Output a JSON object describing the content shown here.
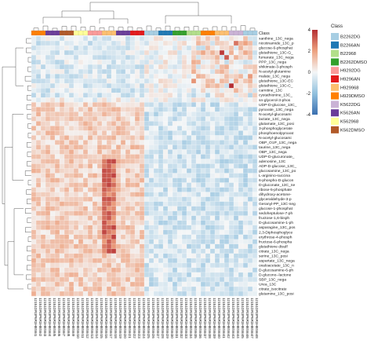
{
  "chart_data": {
    "type": "heatmap",
    "class_row_label": "Class",
    "rows": [
      "xanthine_13C_nega",
      "nicotinamide_13C_p",
      "glucose-6-phosphat",
      "glutathione_13C-G_",
      "fumarate_13C_nega",
      "PPP_13C_nega",
      "shikimate-3-phosph",
      "N-acetyl-glutamine",
      "malate_13C_nega",
      "glutathione_13C-EC",
      "glutathione_13C-C_",
      "carnitine_13C",
      "cystathionine_13C_",
      "sn-glycerol-3-phos",
      "UDP-D-glucose_13C_",
      "pyruvate_13C_nega",
      "N-acetyl-glucosami",
      "lactate_13C_nega",
      "glutamate_13C_posi",
      "3-phosphoglycerate",
      "phosphoenolpyruvat",
      "N-acetyl-glucosami",
      "OBP_O1P_13C_nega",
      "taurine_13C_nega",
      "OBP_13C_nega",
      "UDP-D-glucuronate_",
      "adenosine_13C",
      "ADP-D-glucose_13C_",
      "glucosamine_13C_po",
      "L-arginino-succina",
      "6-phospho-D-glucon",
      "D-gluconate_13C_ne",
      "ribose-5-phosphate",
      "dihydroxy-acetone-",
      "glyceraldehyde-3-p",
      "Geranyl-PP_13C-neg",
      "glucose-1-phosphat",
      "sedoheptulose-7-ph",
      "fructose-1,6-bisph",
      "D-glucosamine-1-ph",
      "asparagine_13C_pos",
      "2,3-Diphosphoglyce",
      "erythrose-4-phosph",
      "fructose-6-phospha",
      "glutathione disulf",
      "citrate_13C_nega",
      "serine_13C_posi",
      "aspartate_13C_nega",
      "oxaloacetate_13C_n",
      "D-glucosamine-6-ph",
      "D-glucono--lactone",
      "SBP_13C_nega",
      "Urea_13C",
      "citrate_isocitrate",
      "glutamine_13C_posi"
    ],
    "columns": [
      "12151DR3P6R3HBS6I1",
      "12151DR3P6R3HBS6I2",
      "12151DR3P6R3HBS6I3",
      "12151DR3P6R3HBS6I4",
      "12151DR3P6R3HBS6I5",
      "12151DR3P6R3HBS6I6",
      "12151DR3P6R3HBS6I7",
      "12151DR3P6R3HBS6I8",
      "12151DR3P6R3HBS6I9",
      "12151DR3P6R3HBS6I10",
      "12151DR3P6R3HBS6I11",
      "12151DR3P6R3HBS6I12",
      "12151DR3P6R3HBS6I13",
      "12151DR3P6R3HBS6I14",
      "12151DR3P6R3HBS6I15",
      "12151DR3P6R3HBS6I16",
      "12151DR3P6R3HBS6I17",
      "12151DR3P6R3HBS6I18",
      "12151DR3P6R3HBS6I19",
      "12151DR3P6R3HBS6I20",
      "12151DR3P6R3HBS6I21",
      "12151DR3P6R3HBS6I22",
      "12151DR3P6R3HBS6I23",
      "12151DR3P6R3HBS6I24",
      "12151DR3P6R3HBS6I25",
      "12151DR3P6R3HBS6I26",
      "12151DR3P6R3HBS6I27",
      "12151DR3P6R3HBS6I28",
      "12151DR3P6R3HBS6I29",
      "12151DR3P6R3HBS6I30",
      "12151DR3P6R3HBS6I31",
      "12151DR3P6R3HBS6I32",
      "12151DR3P6R3HBS6I33",
      "12151DR3P6R3HBS6I34",
      "12151DR3P6R3HBS6I35",
      "12151DR3P6R3HBS6I36",
      "12151DR3P6R3HBS6I37",
      "12151DR3P6R3HBS6I38",
      "12151DR3P6R3HBS6I39",
      "12151DR3P6R3HBS6I40",
      "12151DR3P6R3HBS6I41",
      "12151DR3P6R3HBS6I42",
      "12151DR3P6R3HBS6I43",
      "12151DR3P6R3HBS6I44",
      "12151DR3P6R3HBS6I45",
      "12151DR3P6R3HBS6I46",
      "12151DR3P6R3HBS6I47",
      "12151DR3P6R3HBS6I48"
    ],
    "column_classes": [
      7,
      7,
      7,
      9,
      9,
      9,
      11,
      11,
      11,
      10,
      10,
      10,
      4,
      4,
      4,
      6,
      6,
      6,
      9,
      9,
      9,
      5,
      5,
      5,
      0,
      0,
      0,
      1,
      1,
      1,
      3,
      3,
      3,
      2,
      2,
      2,
      7,
      7,
      7,
      6,
      6,
      6,
      8,
      8,
      8,
      0,
      0,
      0
    ],
    "color_scale": {
      "min": -4,
      "max": 4,
      "ticks": [
        4,
        2,
        0,
        -2,
        -4
      ],
      "colors": [
        "#3a6fb0",
        "#92c1de",
        "#f4f6f7",
        "#eda280",
        "#b52e32"
      ]
    },
    "legend": {
      "title": "Class",
      "position": "right",
      "entries": [
        {
          "label": "B2262DG",
          "color": "#a7cee3"
        },
        {
          "label": "B2266AN",
          "color": "#1f78b4"
        },
        {
          "label": "B22968",
          "color": "#b2df8a"
        },
        {
          "label": "B2262DMSO",
          "color": "#33a02c"
        },
        {
          "label": "H9292DG",
          "color": "#fb9a99"
        },
        {
          "label": "H9296AN",
          "color": "#e31a1c"
        },
        {
          "label": "H929968",
          "color": "#fdbf6f"
        },
        {
          "label": "H929DMSO",
          "color": "#ff7f00"
        },
        {
          "label": "K5622DG",
          "color": "#cab2d6"
        },
        {
          "label": "K5626AN",
          "color": "#6a3d9a"
        },
        {
          "label": "K562968",
          "color": "#ffff99"
        },
        {
          "label": "K562DMSO",
          "color": "#b15928"
        }
      ]
    }
  }
}
